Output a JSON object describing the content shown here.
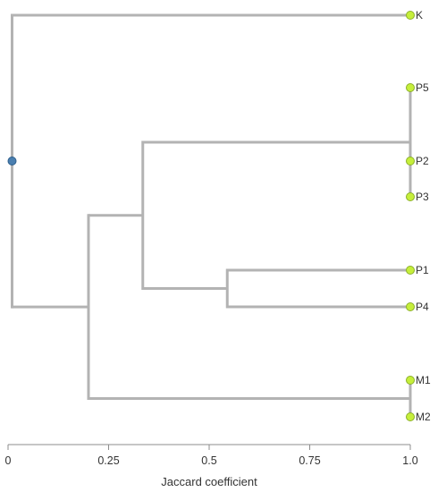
{
  "chart_data": {
    "type": "dendrogram",
    "xlabel": "Jaccard coefficient",
    "xlim": [
      0,
      1.0
    ],
    "ticks": [
      {
        "value": 0,
        "label": "0"
      },
      {
        "value": 0.25,
        "label": "0.25"
      },
      {
        "value": 0.5,
        "label": "0.5"
      },
      {
        "value": 0.75,
        "label": "0.75"
      },
      {
        "value": 1.0,
        "label": "1.0"
      }
    ],
    "leaves": [
      {
        "id": "K",
        "label": "K"
      },
      {
        "id": "P5",
        "label": "P5"
      },
      {
        "id": "P2",
        "label": "P2"
      },
      {
        "id": "P3",
        "label": "P3"
      },
      {
        "id": "P1",
        "label": "P1"
      },
      {
        "id": "P4",
        "label": "P4"
      },
      {
        "id": "M1",
        "label": "M1"
      },
      {
        "id": "M2",
        "label": "M2"
      }
    ],
    "tree": {
      "height": 0.01,
      "children": [
        {
          "leaf": "K"
        },
        {
          "height": 0.2,
          "children": [
            {
              "height": 0.335,
              "children": [
                {
                  "height": 1.0,
                  "children": [
                    {
                      "leaf": "P5"
                    },
                    {
                      "leaf": "P2"
                    },
                    {
                      "leaf": "P3"
                    }
                  ]
                },
                {
                  "height": 0.545,
                  "children": [
                    {
                      "leaf": "P1"
                    },
                    {
                      "leaf": "P4"
                    }
                  ]
                }
              ]
            },
            {
              "height": 1.0,
              "children": [
                {
                  "leaf": "M1"
                },
                {
                  "leaf": "M2"
                }
              ]
            }
          ]
        }
      ]
    },
    "colors": {
      "branch": "#b3b3b3",
      "leaf_node_fill": "#c6ef3b",
      "leaf_node_stroke": "#8cb02a",
      "root_node_fill": "#4a7fb0",
      "root_node_stroke": "#2e5f8c",
      "axis": "#8c8c8c",
      "text": "#333333"
    }
  }
}
